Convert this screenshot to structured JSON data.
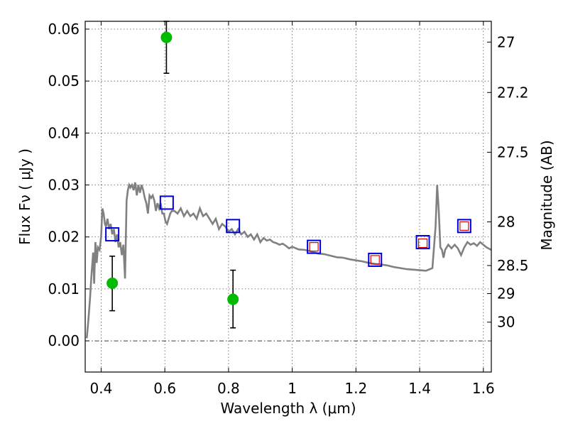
{
  "chart_data": {
    "type": "scatter",
    "title": "",
    "xlabel": "Wavelength  λ (μm)",
    "ylabel": "Flux  Fν  ( μJy )",
    "ylabel_right": "Magnitude (AB)",
    "xlim": [
      0.35,
      1.625
    ],
    "ylim": [
      -0.006,
      0.0615
    ],
    "grid": true,
    "x_ticks": [
      0.4,
      0.6,
      0.8,
      1.0,
      1.2,
      1.4,
      1.6
    ],
    "x_tick_labels": [
      "0.4",
      "0.6",
      "0.8",
      "1",
      "1.2",
      "1.4",
      "1.6"
    ],
    "y_ticks": [
      0.0,
      0.01,
      0.02,
      0.03,
      0.04,
      0.05,
      0.06
    ],
    "y_tick_labels": [
      "0.00",
      "0.01",
      "0.02",
      "0.03",
      "0.04",
      "0.05",
      "0.06"
    ],
    "right_ticks": [
      {
        "label": "27",
        "flux": 0.0575
      },
      {
        "label": "27.2",
        "flux": 0.0478
      },
      {
        "label": "27.5",
        "flux": 0.0363
      },
      {
        "label": "28",
        "flux": 0.0229
      },
      {
        "label": "28.5",
        "flux": 0.0145
      },
      {
        "label": "29",
        "flux": 0.0091
      },
      {
        "label": "30",
        "flux": 0.0036
      }
    ],
    "series": [
      {
        "kind": "line",
        "color": "#808080",
        "x": [
          0.355,
          0.36,
          0.365,
          0.37,
          0.375,
          0.378,
          0.382,
          0.386,
          0.39,
          0.395,
          0.4,
          0.404,
          0.408,
          0.412,
          0.415,
          0.42,
          0.425,
          0.43,
          0.435,
          0.44,
          0.445,
          0.45,
          0.455,
          0.46,
          0.465,
          0.47,
          0.475,
          0.48,
          0.484,
          0.488,
          0.492,
          0.497,
          0.502,
          0.507,
          0.512,
          0.517,
          0.522,
          0.527,
          0.532,
          0.537,
          0.542,
          0.547,
          0.552,
          0.557,
          0.562,
          0.567,
          0.572,
          0.577,
          0.582,
          0.587,
          0.592,
          0.597,
          0.602,
          0.607,
          0.612,
          0.617,
          0.622,
          0.63,
          0.64,
          0.65,
          0.66,
          0.67,
          0.68,
          0.69,
          0.7,
          0.71,
          0.72,
          0.73,
          0.74,
          0.75,
          0.76,
          0.77,
          0.78,
          0.79,
          0.8,
          0.81,
          0.82,
          0.83,
          0.84,
          0.85,
          0.86,
          0.87,
          0.88,
          0.89,
          0.9,
          0.91,
          0.92,
          0.93,
          0.94,
          0.95,
          0.96,
          0.97,
          0.98,
          0.99,
          1.0,
          1.02,
          1.04,
          1.06,
          1.08,
          1.1,
          1.12,
          1.14,
          1.16,
          1.18,
          1.2,
          1.22,
          1.24,
          1.26,
          1.28,
          1.3,
          1.32,
          1.34,
          1.36,
          1.38,
          1.4,
          1.42,
          1.44,
          1.45,
          1.455,
          1.46,
          1.465,
          1.47,
          1.475,
          1.48,
          1.49,
          1.5,
          1.51,
          1.52,
          1.53,
          1.54,
          1.55,
          1.56,
          1.57,
          1.58,
          1.59,
          1.6,
          1.61,
          1.625
        ],
        "y": [
          0.0005,
          0.004,
          0.008,
          0.013,
          0.017,
          0.011,
          0.019,
          0.015,
          0.018,
          0.0175,
          0.02,
          0.0255,
          0.0245,
          0.0225,
          0.022,
          0.0235,
          0.0215,
          0.0225,
          0.0205,
          0.0215,
          0.019,
          0.0205,
          0.018,
          0.019,
          0.0165,
          0.0185,
          0.012,
          0.027,
          0.029,
          0.03,
          0.0295,
          0.03,
          0.029,
          0.0305,
          0.028,
          0.03,
          0.0285,
          0.03,
          0.029,
          0.0275,
          0.0265,
          0.0245,
          0.028,
          0.0275,
          0.028,
          0.027,
          0.025,
          0.0265,
          0.0255,
          0.0265,
          0.0245,
          0.0245,
          0.023,
          0.0225,
          0.0235,
          0.0245,
          0.025,
          0.025,
          0.0245,
          0.0255,
          0.024,
          0.025,
          0.024,
          0.0245,
          0.0235,
          0.0255,
          0.024,
          0.0245,
          0.0235,
          0.0225,
          0.0235,
          0.0215,
          0.0225,
          0.022,
          0.021,
          0.0215,
          0.0205,
          0.0215,
          0.0205,
          0.021,
          0.02,
          0.0205,
          0.0195,
          0.0205,
          0.019,
          0.0198,
          0.0193,
          0.0195,
          0.019,
          0.0188,
          0.0185,
          0.0187,
          0.0183,
          0.0178,
          0.0181,
          0.0176,
          0.0175,
          0.0172,
          0.0168,
          0.0167,
          0.0164,
          0.0161,
          0.016,
          0.0157,
          0.0155,
          0.0153,
          0.015,
          0.0148,
          0.0147,
          0.0145,
          0.0142,
          0.014,
          0.0138,
          0.0137,
          0.0136,
          0.0135,
          0.014,
          0.022,
          0.03,
          0.025,
          0.018,
          0.0175,
          0.016,
          0.0175,
          0.0185,
          0.0178,
          0.0185,
          0.0178,
          0.0165,
          0.018,
          0.019,
          0.0185,
          0.0188,
          0.0183,
          0.019,
          0.0185,
          0.018,
          0.0175
        ]
      },
      {
        "kind": "points",
        "marker": "circle",
        "color": "#00bb00",
        "points": [
          {
            "x": 0.435,
            "y": 0.0111,
            "ylo": 0.0058,
            "yhi": 0.0163
          },
          {
            "x": 0.605,
            "y": 0.0584,
            "ylo": 0.0515,
            "yhi": 0.0615
          },
          {
            "x": 0.814,
            "y": 0.008,
            "ylo": 0.0025,
            "yhi": 0.0136
          }
        ]
      },
      {
        "kind": "points",
        "marker": "square",
        "color": "#0000dd",
        "points": [
          {
            "x": 0.435,
            "y": 0.0205
          },
          {
            "x": 0.606,
            "y": 0.0266
          },
          {
            "x": 0.814,
            "y": 0.0221
          },
          {
            "x": 1.068,
            "y": 0.0181
          },
          {
            "x": 1.26,
            "y": 0.0156
          },
          {
            "x": 1.41,
            "y": 0.019
          },
          {
            "x": 1.54,
            "y": 0.0221
          }
        ]
      },
      {
        "kind": "points",
        "marker": "square-small",
        "color": "#dd0000",
        "points": [
          {
            "x": 1.068,
            "y": 0.0181
          },
          {
            "x": 1.26,
            "y": 0.0156
          },
          {
            "x": 1.41,
            "y": 0.0188
          },
          {
            "x": 1.54,
            "y": 0.0221
          }
        ]
      }
    ]
  }
}
